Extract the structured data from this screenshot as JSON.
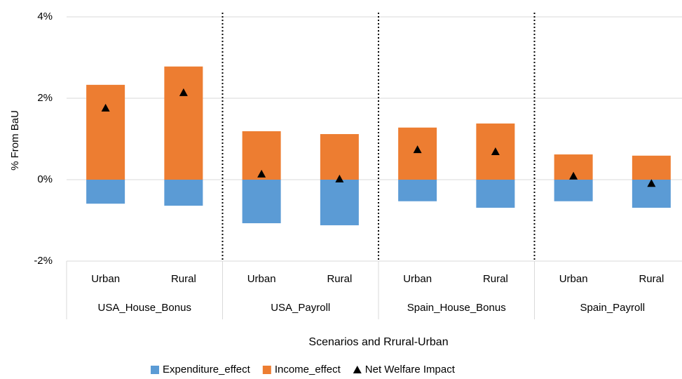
{
  "chart_data": {
    "type": "bar",
    "y_label": "% From BaU",
    "x_label": "Scenarios and Rrural-Urban",
    "groups": [
      "USA_House_Bonus",
      "USA_Payroll",
      "Spain_House_Bonus",
      "Spain_Payroll"
    ],
    "categories": [
      "Urban",
      "Rural",
      "Urban",
      "Rural",
      "Urban",
      "Rural",
      "Urban",
      "Rural"
    ],
    "series": [
      {
        "name": "Expenditure_effect",
        "color": "#5b9bd5",
        "values": [
          -0.59,
          -0.64,
          -1.07,
          -1.12,
          -0.53,
          -0.69,
          -0.53,
          -0.69
        ]
      },
      {
        "name": "Income_effect",
        "color": "#ed7d31",
        "values": [
          2.33,
          2.78,
          1.19,
          1.12,
          1.28,
          1.38,
          0.62,
          0.59
        ]
      },
      {
        "name": "Net Welfare Impact",
        "color": "#000000",
        "marker": "triangle",
        "values": [
          1.76,
          2.14,
          0.14,
          0.02,
          0.74,
          0.69,
          0.09,
          -0.09
        ]
      }
    ],
    "ylim": [
      -2,
      4
    ],
    "yticks": [
      {
        "value": -2,
        "label": "-2%"
      },
      {
        "value": 0,
        "label": "0%"
      },
      {
        "value": 2,
        "label": "2%"
      },
      {
        "value": 4,
        "label": "4%"
      }
    ],
    "grid": true,
    "legend": "bottom"
  }
}
